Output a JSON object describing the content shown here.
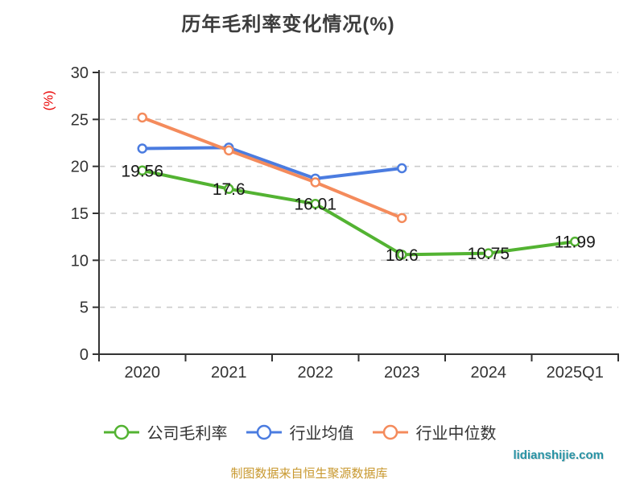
{
  "chart_data": {
    "type": "line",
    "title": "历年毛利率变化情况(%)",
    "categories": [
      "2020",
      "2021",
      "2022",
      "2023",
      "2024",
      "2025Q1"
    ],
    "series": [
      {
        "name": "公司毛利率",
        "color": "#53b332",
        "values": [
          19.56,
          17.6,
          16.01,
          10.6,
          10.75,
          11.99
        ],
        "point_labels": [
          "19.56",
          "17.6",
          "16.01",
          "10.6",
          "10.75",
          "11.99"
        ],
        "show_point_labels": true
      },
      {
        "name": "行业均值",
        "color": "#4b7ce0",
        "values": [
          21.9,
          22.0,
          18.7,
          19.8,
          null,
          null
        ],
        "point_labels": [],
        "show_point_labels": false
      },
      {
        "name": "行业中位数",
        "color": "#f48b5c",
        "values": [
          25.2,
          21.7,
          18.3,
          14.5,
          null,
          null
        ],
        "point_labels": [],
        "show_point_labels": false
      }
    ],
    "xlabel": "",
    "ylabel": "(%)",
    "ylabel_color": "#ea0000",
    "ylim": [
      0,
      30
    ],
    "ytick_interval": 5,
    "yticks": [
      0,
      5,
      10,
      15,
      20,
      25,
      30
    ],
    "grid": true,
    "grid_color": "#cccccc",
    "axis_color": "#333333",
    "tick_label_color": "#333333",
    "data_label_color": "#1a1a1a",
    "legend_position": "bottom"
  },
  "footer": {
    "source_note": "制图数据来自恒生聚源数据库",
    "source_note_color": "#c8982f",
    "watermark": "lidianshijie.com",
    "watermark_color": "#2792a4"
  }
}
